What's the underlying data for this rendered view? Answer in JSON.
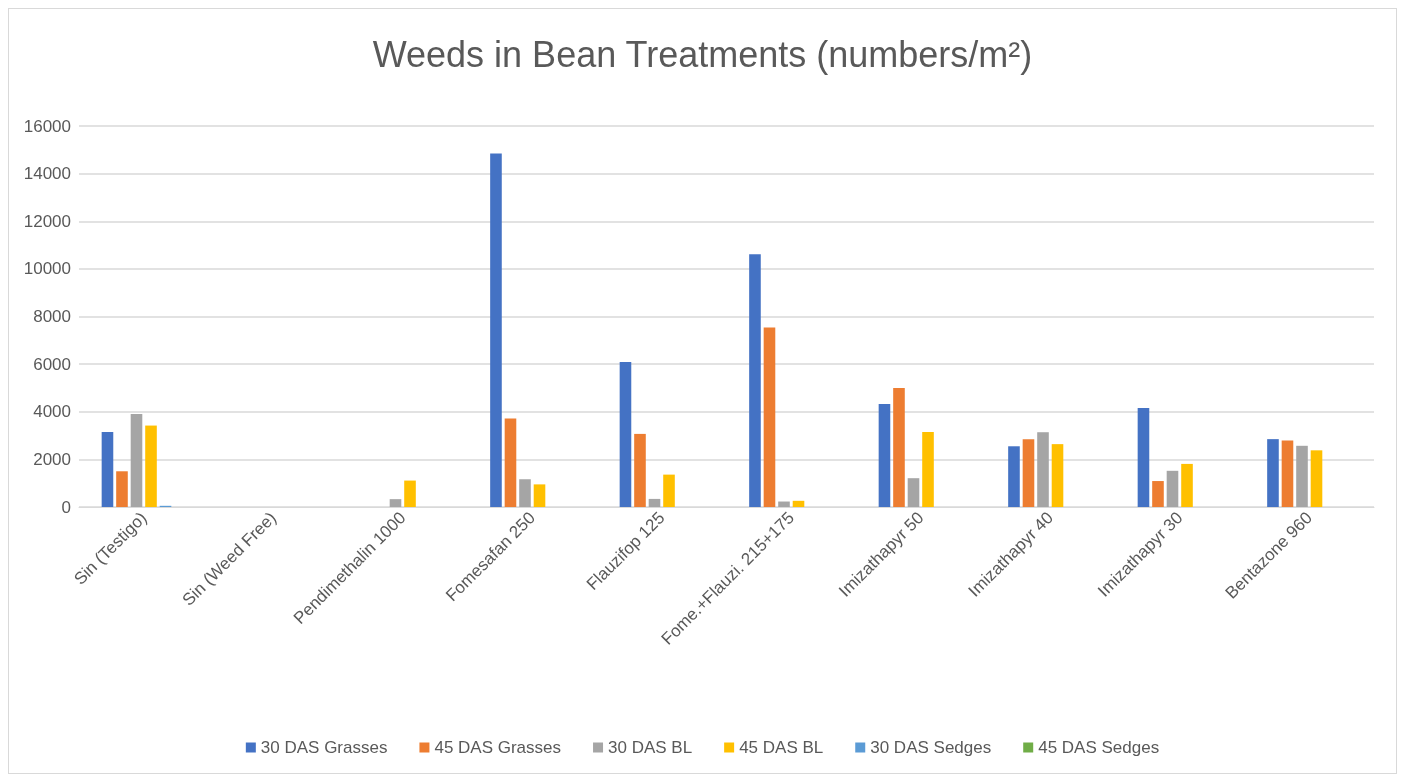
{
  "chart_data": {
    "type": "bar",
    "title": "Weeds in Bean Treatments (numbers/m²)",
    "categories": [
      "Sin (Testigo)",
      "Sin (Weed Free)",
      "Pendimethalin 1000",
      "Fomesafan 250",
      "Flauzifop 125",
      "Fome.+Flauzi. 215+175",
      "Imizathapyr 50",
      "Imizathapyr 40",
      "Imizathapyr 30",
      "Bentazone 960"
    ],
    "series": [
      {
        "name": "30 DAS Grasses",
        "color": "#4472c4",
        "values": [
          3150,
          0,
          null,
          14850,
          6090,
          10610,
          4330,
          2550,
          4160,
          2850
        ]
      },
      {
        "name": "45 DAS Grasses",
        "color": "#ed7d31",
        "values": [
          1500,
          0,
          0,
          3720,
          3070,
          7540,
          5000,
          2840,
          1090,
          2790
        ]
      },
      {
        "name": "30 DAS BL",
        "color": "#a5a5a5",
        "values": [
          3910,
          0,
          330,
          1170,
          340,
          230,
          1210,
          3140,
          1520,
          2570
        ]
      },
      {
        "name": "45 DAS BL",
        "color": "#ffc000",
        "values": [
          3420,
          0,
          1110,
          950,
          1360,
          260,
          3150,
          2640,
          1810,
          2380
        ]
      },
      {
        "name": "30 DAS Sedges",
        "color": "#5b9bd5",
        "values": [
          50,
          0,
          0,
          0,
          0,
          0,
          0,
          0,
          0,
          0
        ]
      },
      {
        "name": "45 DAS Sedges",
        "color": "#70ad47",
        "values": [
          0,
          0,
          0,
          0,
          0,
          0,
          0,
          0,
          0,
          0
        ]
      }
    ],
    "ylim": [
      0,
      16000
    ],
    "yticks": [
      0,
      2000,
      4000,
      6000,
      8000,
      10000,
      12000,
      14000,
      16000
    ],
    "grid": "y",
    "legend": "bottom"
  }
}
